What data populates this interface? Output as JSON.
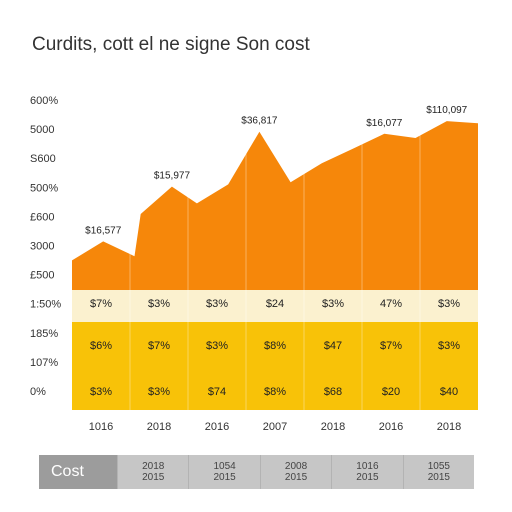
{
  "chart_data": {
    "type": "area",
    "title": "Curdits, cott el ne signe Son cost",
    "y_tick_labels": [
      "600%",
      "5000",
      "S600",
      "500%",
      "£600",
      "3000",
      "£500",
      "1:50%",
      "185%",
      "107%",
      "0%"
    ],
    "x_tick_labels": [
      "1016",
      "2018",
      "2016",
      "2007",
      "2018",
      "2016",
      "2018"
    ],
    "x": [
      0,
      0.5,
      1,
      1.1,
      1.6,
      2,
      2.5,
      3,
      3.5,
      4,
      4.5,
      5,
      5.5,
      6,
      6.5
    ],
    "area_values": [
      1.4,
      2.3,
      1.6,
      3.6,
      4.9,
      4.1,
      5.0,
      7.5,
      5.1,
      6.0,
      6.7,
      7.4,
      7.2,
      8.0,
      7.9
    ],
    "ylim": [
      0,
      9
    ],
    "color": "#f6870a",
    "annotations": [
      {
        "x": 0.5,
        "label": "$16,577"
      },
      {
        "x": 1.6,
        "label": "$15,977"
      },
      {
        "x": 3.0,
        "label": "$36,817"
      },
      {
        "x": 5.0,
        "label": "$16,077"
      },
      {
        "x": 6.0,
        "label": "$110,097"
      }
    ],
    "table": {
      "row_colors": [
        "#fbf1cf",
        "#f8c208",
        "#f8c208"
      ],
      "rows": [
        [
          "$7%",
          "$3%",
          "$3%",
          "$24",
          "$3%",
          "47%",
          "$3%"
        ],
        [
          "$6%",
          "$7%",
          "$3%",
          "$8%",
          "$47",
          "$7%",
          "$3%"
        ],
        [
          "$3%",
          "$3%",
          "$74",
          "$8%",
          "$68",
          "$20",
          "$40"
        ]
      ]
    }
  },
  "footer": {
    "label": "Cost",
    "cells": [
      {
        "top": "2018",
        "bottom": "2015"
      },
      {
        "top": "1054",
        "bottom": "2015"
      },
      {
        "top": "2008",
        "bottom": "2015"
      },
      {
        "top": "1016",
        "bottom": "2015"
      },
      {
        "top": "1055",
        "bottom": "2015"
      }
    ]
  }
}
